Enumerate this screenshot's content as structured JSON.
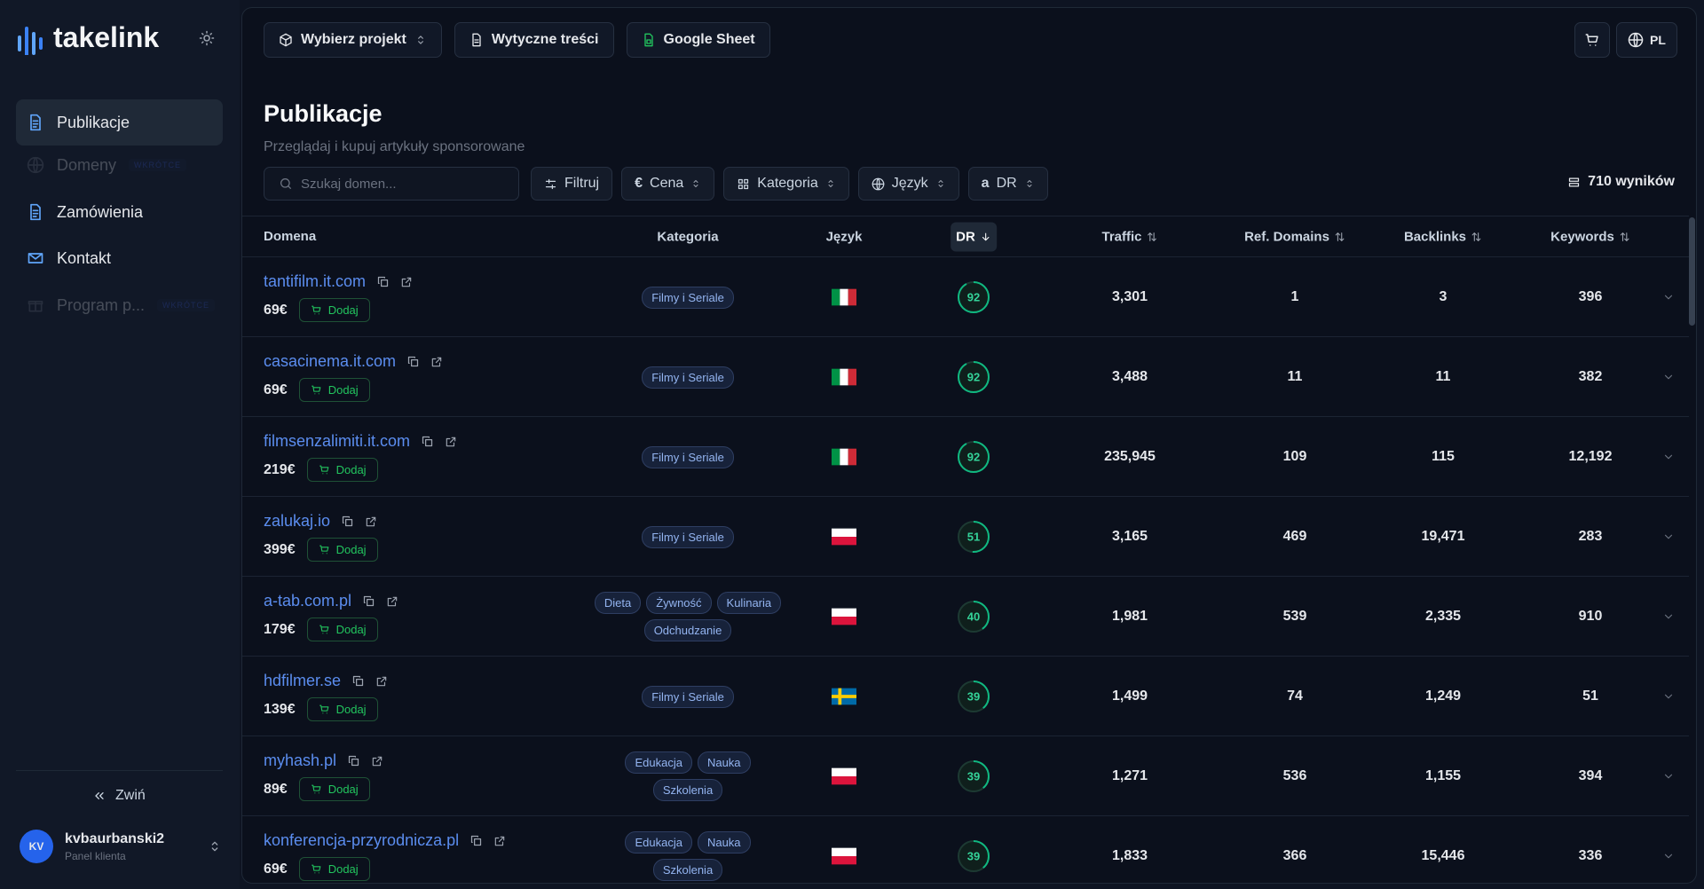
{
  "brand": "takelink",
  "nav": [
    {
      "label": "Publikacje"
    },
    {
      "label": "Domeny",
      "badge": "WKRÓTCE"
    },
    {
      "label": "Zamówienia"
    },
    {
      "label": "Kontakt"
    },
    {
      "label": "Program p...",
      "badge": "WKRÓTCE"
    }
  ],
  "collapse": "Zwiń",
  "user": {
    "initials": "KV",
    "name": "kvbaurbanski2",
    "role": "Panel klienta"
  },
  "toolbar": [
    "Wybierz projekt",
    "Wytyczne treści",
    "Google Sheet"
  ],
  "lang": "PL",
  "page": {
    "title": "Publikacje",
    "subtitle": "Przeglądaj i kupuj artykuły sponsorowane"
  },
  "search_placeholder": "Szukaj domen...",
  "filters": [
    {
      "label": "Filtruj"
    },
    {
      "icon_text": "€",
      "label": "Cena"
    },
    {
      "label": "Kategoria"
    },
    {
      "label": "Język"
    },
    {
      "icon_text": "a",
      "label": "DR"
    }
  ],
  "results": "710 wyników",
  "table": {
    "columns": [
      "Domena",
      "Kategoria",
      "Język",
      "DR",
      "Traffic",
      "Ref. Domains",
      "Backlinks",
      "Keywords"
    ],
    "add_label": "Dodaj",
    "rows": [
      {
        "domain": "tantifilm.it.com",
        "price": "69€",
        "categories": [
          "Filmy i Seriale"
        ],
        "flag": "it",
        "dr": 92,
        "traffic": "3,301",
        "ref_domains": "1",
        "backlinks": "3",
        "keywords": "396"
      },
      {
        "domain": "casacinema.it.com",
        "price": "69€",
        "categories": [
          "Filmy i Seriale"
        ],
        "flag": "it",
        "dr": 92,
        "traffic": "3,488",
        "ref_domains": "11",
        "backlinks": "11",
        "keywords": "382"
      },
      {
        "domain": "filmsenzalimiti.it.com",
        "price": "219€",
        "categories": [
          "Filmy i Seriale"
        ],
        "flag": "it",
        "dr": 92,
        "traffic": "235,945",
        "ref_domains": "109",
        "backlinks": "115",
        "keywords": "12,192"
      },
      {
        "domain": "zalukaj.io",
        "price": "399€",
        "categories": [
          "Filmy i Seriale"
        ],
        "flag": "pl",
        "dr": 51,
        "traffic": "3,165",
        "ref_domains": "469",
        "backlinks": "19,471",
        "keywords": "283"
      },
      {
        "domain": "a-tab.com.pl",
        "price": "179€",
        "categories": [
          "Dieta",
          "Żywność",
          "Kulinaria",
          "Odchudzanie"
        ],
        "flag": "pl",
        "dr": 40,
        "traffic": "1,981",
        "ref_domains": "539",
        "backlinks": "2,335",
        "keywords": "910"
      },
      {
        "domain": "hdfilmer.se",
        "price": "139€",
        "categories": [
          "Filmy i Seriale"
        ],
        "flag": "se",
        "dr": 39,
        "traffic": "1,499",
        "ref_domains": "74",
        "backlinks": "1,249",
        "keywords": "51"
      },
      {
        "domain": "myhash.pl",
        "price": "89€",
        "categories": [
          "Edukacja",
          "Nauka",
          "Szkolenia"
        ],
        "flag": "pl",
        "dr": 39,
        "traffic": "1,271",
        "ref_domains": "536",
        "backlinks": "1,155",
        "keywords": "394"
      },
      {
        "domain": "konferencja-przyrodnicza.pl",
        "price": "69€",
        "categories": [
          "Edukacja",
          "Nauka",
          "Szkolenia"
        ],
        "flag": "pl",
        "dr": 39,
        "traffic": "1,833",
        "ref_domains": "366",
        "backlinks": "15,446",
        "keywords": "336"
      }
    ]
  }
}
